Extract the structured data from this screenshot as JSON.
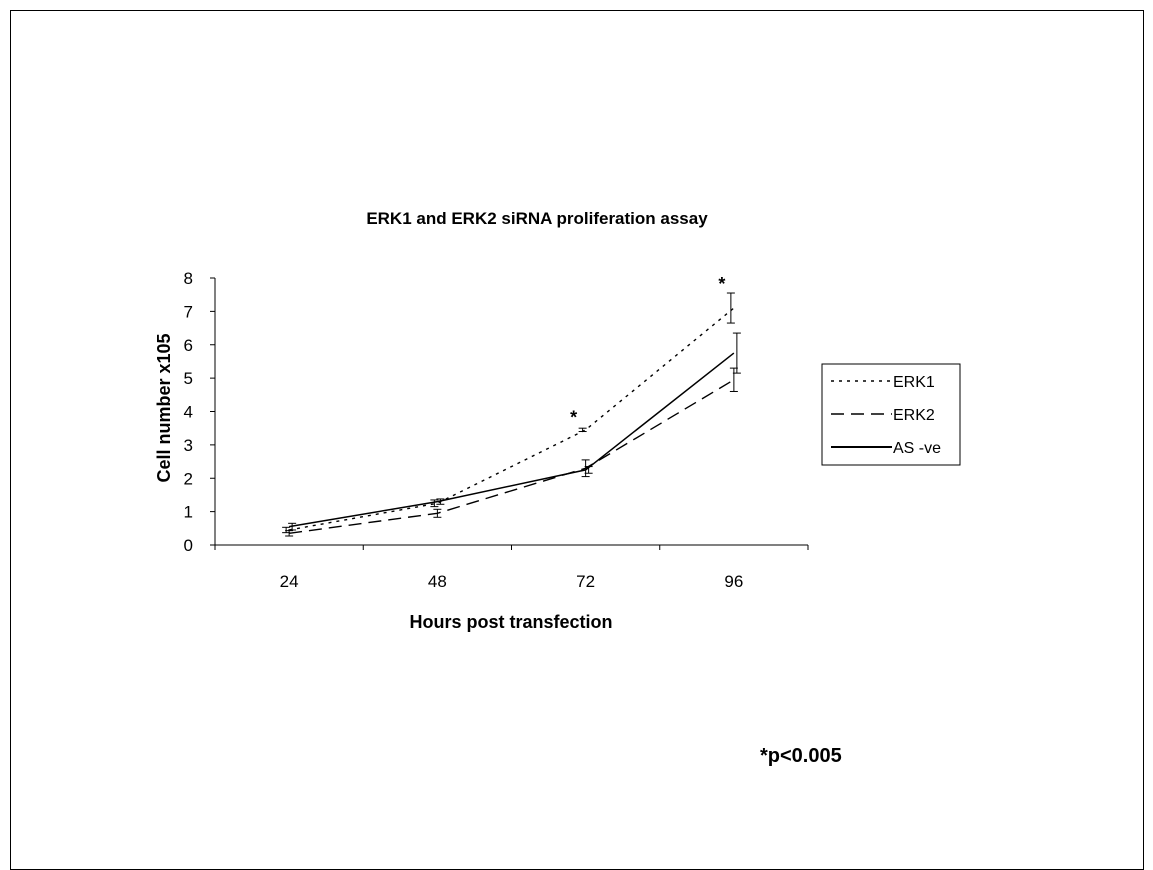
{
  "chart_data": {
    "type": "line",
    "title": "ERK1 and ERK2 siRNA proliferation assay",
    "xlabel": "Hours post transfection",
    "ylabel": "Cell number x105",
    "categories": [
      "24",
      "48",
      "72",
      "96"
    ],
    "ylim": [
      0,
      8
    ],
    "yticks": [
      "0",
      "1",
      "2",
      "3",
      "4",
      "5",
      "6",
      "7",
      "8"
    ],
    "grid": false,
    "legend_position": "right",
    "series": [
      {
        "name": "ERK1",
        "style": "dotted",
        "values": [
          0.45,
          1.25,
          3.45,
          7.1
        ],
        "errors": [
          0.08,
          0.1,
          0.05,
          0.45
        ]
      },
      {
        "name": "ERK2",
        "style": "dashed",
        "values": [
          0.35,
          0.95,
          2.3,
          4.95
        ],
        "errors": [
          0.08,
          0.12,
          0.25,
          0.35
        ]
      },
      {
        "name": "AS -ve",
        "style": "solid",
        "values": [
          0.55,
          1.3,
          2.25,
          5.75
        ],
        "errors": [
          0.1,
          0.08,
          0.1,
          0.6
        ]
      }
    ],
    "significance_markers": [
      {
        "category": "72",
        "value": 4.0,
        "label": "*"
      },
      {
        "category": "96",
        "value": 8.0,
        "label": "*"
      }
    ],
    "footnote": "*p<0.005"
  }
}
